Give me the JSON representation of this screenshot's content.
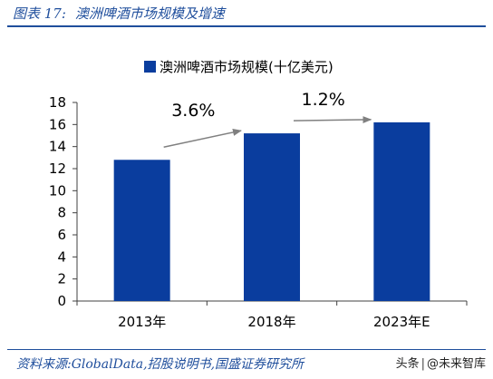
{
  "figure": {
    "label": "图表 17:",
    "title": "澳洲啤酒市场规模及增速"
  },
  "source": "资料来源:GlobalData,招股说明书,国盛证券研究所",
  "watermark": {
    "platform": "头条",
    "account": "@未来智库"
  },
  "colors": {
    "accent": "#1f4e9c",
    "bar": "#0a3d9e",
    "arrow": "#808080"
  },
  "chart_data": {
    "type": "bar",
    "categories": [
      "2013年",
      "2018年",
      "2023年E"
    ],
    "series": [
      {
        "name": "澳洲啤酒市场规模(十亿美元)",
        "values": [
          12.8,
          15.2,
          16.2
        ]
      }
    ],
    "ylim": [
      0,
      18
    ],
    "yticks": [
      0,
      2,
      4,
      6,
      8,
      10,
      12,
      14,
      16,
      18
    ],
    "grid": false,
    "legend": "top-center",
    "annotations": [
      {
        "text": "3.6%",
        "from": "2013年",
        "to": "2018年"
      },
      {
        "text": "1.2%",
        "from": "2018年",
        "to": "2023年E"
      }
    ]
  }
}
